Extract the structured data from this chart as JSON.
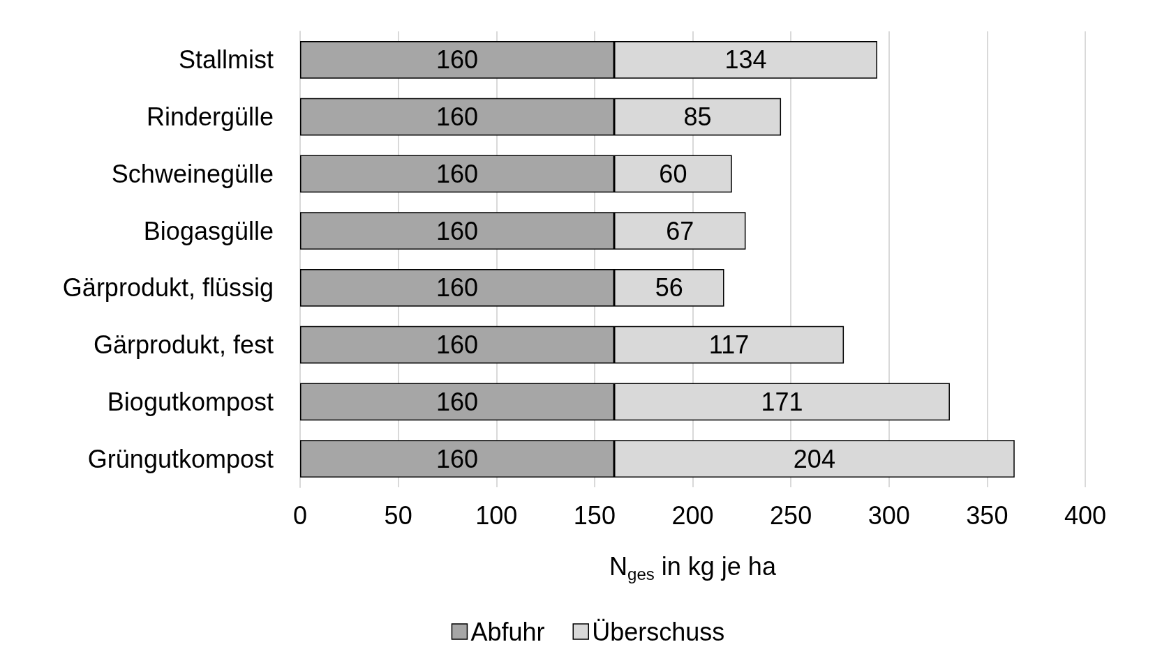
{
  "chart_data": {
    "type": "bar",
    "orientation": "horizontal",
    "stacked": true,
    "xlabel": "N$_{ges}$ in kg je ha",
    "categories": [
      "Stallmist",
      "Rindergülle",
      "Schweinegülle",
      "Biogasgülle",
      "Gärprodukt, flüssig",
      "Gärprodukt, fest",
      "Biogutkompost",
      "Grüngutkompost"
    ],
    "series": [
      {
        "name": "Abfuhr",
        "color": "#a6a6a6",
        "values": [
          160,
          160,
          160,
          160,
          160,
          160,
          160,
          160
        ]
      },
      {
        "name": "Überschuss",
        "color": "#d9d9d9",
        "values": [
          134,
          85,
          60,
          67,
          56,
          117,
          171,
          204
        ]
      }
    ],
    "xlim": [
      0,
      400
    ],
    "xticks": [
      0,
      50,
      100,
      150,
      200,
      250,
      300,
      350,
      400
    ],
    "grid": "x",
    "legend": "bottom",
    "data_labels": true
  }
}
